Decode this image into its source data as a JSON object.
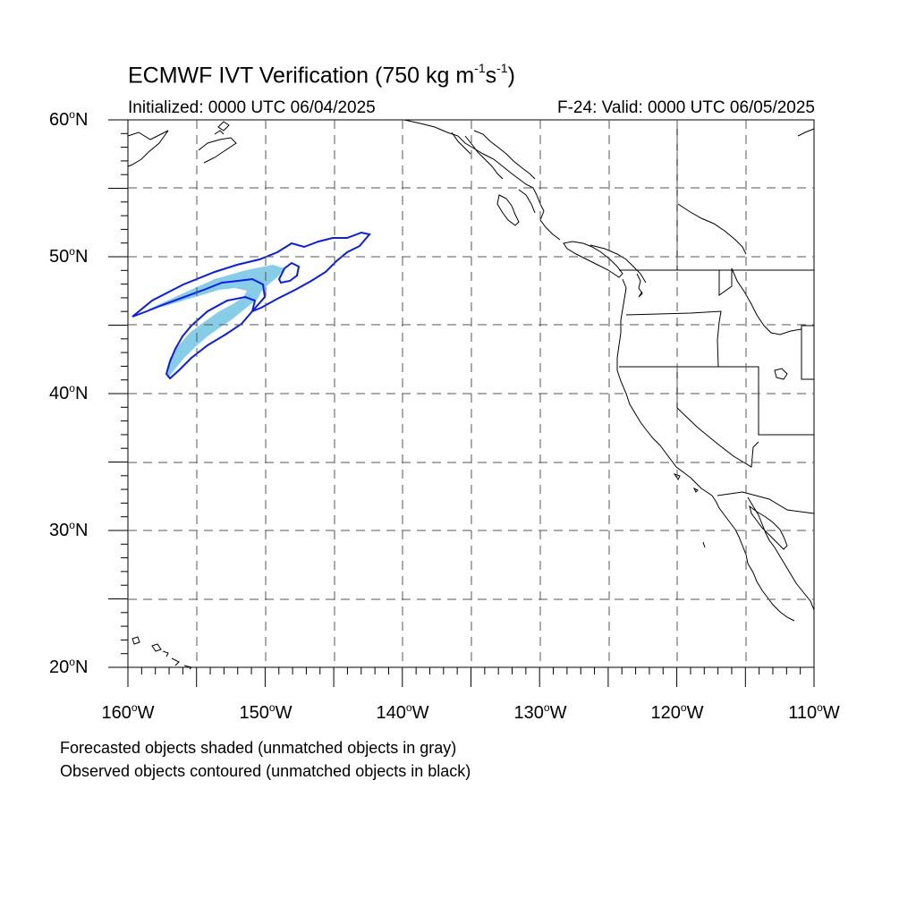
{
  "title": {
    "main": "ECMWF IVT Verification (750 kg m",
    "sup1": "-1",
    "mid": "s",
    "sup2": "-1",
    "end": ")"
  },
  "initialized": "Initialized: 0000 UTC 06/04/2025",
  "valid": "F-24: Valid: 0000 UTC 06/05/2025",
  "lat_labels": [
    "60",
    "50",
    "40",
    "30",
    "20"
  ],
  "lat_suffix": "N",
  "lon_labels": [
    "160",
    "150",
    "140",
    "130",
    "120",
    "110"
  ],
  "lon_suffix": "W",
  "degree_symbol": "o",
  "notes": {
    "forecast": "Forecasted objects shaded (unmatched objects in gray)",
    "observed": "Observed objects contoured (unmatched objects in black)"
  },
  "map_extent": {
    "lon_min": -160,
    "lon_max": -110,
    "lat_min": 20,
    "lat_max": 60
  },
  "colors": {
    "forecast_fill": "#87cde8",
    "observed_contour": "#0a1ee6",
    "coastline": "#000000",
    "grid": "#555555"
  }
}
